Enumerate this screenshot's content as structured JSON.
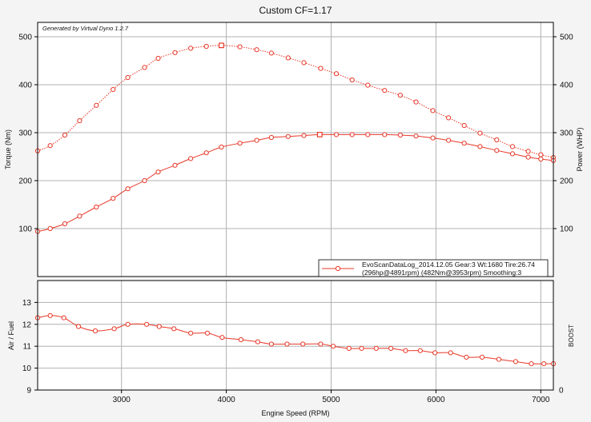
{
  "title": "Custom CF=1.17",
  "watermark": "Generated by Virtual Dyno 1.2.7",
  "colors": {
    "series": "#e8392a",
    "grid": "#b0b0b0",
    "plot_bg": "#ffffff",
    "page_bg": "#f4f4f4",
    "axis": "#000000"
  },
  "legend": {
    "line1": "EvoScanDataLog_2014.12.05 Gear:3 Wt:1680 Tire:26.74",
    "line2": "(296hp@4891rpm) (482Nm@3953rpm) Smoothing:3"
  },
  "chart_data": [
    {
      "type": "line",
      "title": "Custom CF=1.17",
      "xlabel": "Engine Speed (RPM)",
      "ylabel": "Torque (Nm)",
      "y2label": "Power (WHP)",
      "xlim": [
        2200,
        7120
      ],
      "ylim": [
        0,
        530
      ],
      "y2lim": [
        0,
        530
      ],
      "x_ticks": [
        3000,
        4000,
        5000,
        6000,
        7000
      ],
      "y_ticks": [
        100,
        200,
        300,
        400,
        500
      ],
      "y2_ticks": [
        100,
        200,
        300,
        400,
        500
      ],
      "grid": true,
      "legend_position": "bottom-right",
      "series": [
        {
          "name": "",
          "style": "dotted",
          "x": [
            2200,
            2320,
            2460,
            2600,
            2760,
            2920,
            3060,
            3220,
            3350,
            3510,
            3660,
            3810,
            3953,
            4130,
            4290,
            4430,
            4590,
            4740,
            4900,
            5050,
            5200,
            5350,
            5510,
            5660,
            5810,
            5970,
            6120,
            6270,
            6420,
            6580,
            6730,
            6880,
            7000,
            7120
          ],
          "values": [
            262,
            273,
            295,
            325,
            357,
            390,
            415,
            436,
            455,
            467,
            476,
            480,
            482,
            479,
            473,
            466,
            456,
            446,
            434,
            423,
            410,
            399,
            388,
            378,
            364,
            346,
            331,
            315,
            299,
            285,
            271,
            261,
            254,
            248
          ]
        },
        {
          "name": "",
          "style": "solid",
          "x": [
            2200,
            2320,
            2460,
            2600,
            2760,
            2920,
            3060,
            3220,
            3350,
            3510,
            3660,
            3810,
            3953,
            4130,
            4290,
            4430,
            4590,
            4740,
            4891,
            5050,
            5200,
            5350,
            5510,
            5660,
            5810,
            5970,
            6120,
            6270,
            6420,
            6580,
            6730,
            6880,
            7000,
            7120
          ],
          "values": [
            94,
            100,
            110,
            126,
            145,
            163,
            183,
            200,
            218,
            232,
            246,
            258,
            270,
            278,
            284,
            290,
            292,
            294,
            296,
            296,
            296,
            296,
            296,
            295,
            293,
            289,
            284,
            278,
            271,
            263,
            256,
            249,
            245,
            242
          ]
        }
      ],
      "markers": [
        {
          "series": 0,
          "x": 3953,
          "value": 482
        },
        {
          "series": 1,
          "x": 4891,
          "value": 296
        }
      ]
    },
    {
      "type": "line",
      "xlabel": "Engine Speed (RPM)",
      "ylabel": "Air / Fuel",
      "y2label": "BOOST",
      "xlim": [
        2200,
        7120
      ],
      "ylim": [
        9,
        14
      ],
      "x_ticks": [
        3000,
        4000,
        5000,
        6000,
        7000
      ],
      "y_ticks": [
        9,
        10,
        11,
        12,
        13
      ],
      "y2_ticks": [
        0
      ],
      "grid": true,
      "series": [
        {
          "name": "",
          "x": [
            2200,
            2320,
            2450,
            2590,
            2750,
            2930,
            3060,
            3240,
            3360,
            3500,
            3660,
            3820,
            3960,
            4140,
            4300,
            4430,
            4580,
            4730,
            4900,
            5020,
            5170,
            5290,
            5430,
            5570,
            5710,
            5850,
            5990,
            6140,
            6290,
            6440,
            6600,
            6760,
            6910,
            7030,
            7120
          ],
          "values": [
            12.3,
            12.4,
            12.3,
            11.9,
            11.7,
            11.8,
            12.0,
            12.0,
            11.9,
            11.8,
            11.6,
            11.6,
            11.4,
            11.3,
            11.2,
            11.1,
            11.1,
            11.1,
            11.1,
            11.0,
            10.9,
            10.9,
            10.9,
            10.9,
            10.8,
            10.8,
            10.7,
            10.7,
            10.5,
            10.5,
            10.4,
            10.3,
            10.2,
            10.2,
            10.2
          ]
        }
      ]
    }
  ]
}
